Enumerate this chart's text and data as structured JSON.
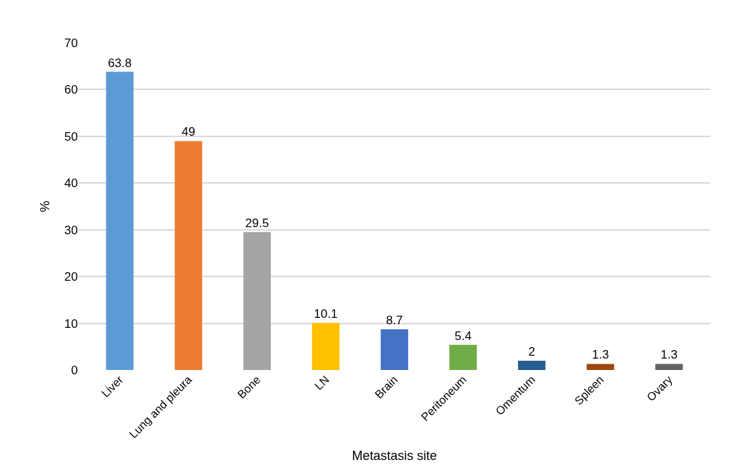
{
  "chart_data": {
    "type": "bar",
    "xlabel": "Metastasis site",
    "ylabel": "%",
    "categories": [
      "Liver",
      "Lung and pleura",
      "Bone",
      "LN",
      "Brain",
      "Peritoneum",
      "Omentum",
      "Spleen",
      "Ovary"
    ],
    "values": [
      63.8,
      49,
      29.5,
      10.1,
      8.7,
      5.4,
      2,
      1.3,
      1.3
    ],
    "colors": [
      "#5b9bd5",
      "#ed7d31",
      "#a5a5a5",
      "#ffc000",
      "#4472c4",
      "#70ad47",
      "#255e91",
      "#9e480e",
      "#636363"
    ],
    "ylim": [
      0,
      70
    ],
    "yticks": [
      0,
      10,
      20,
      30,
      40,
      50,
      60,
      70
    ],
    "grid": "y",
    "data_labels": true,
    "legend": false
  }
}
